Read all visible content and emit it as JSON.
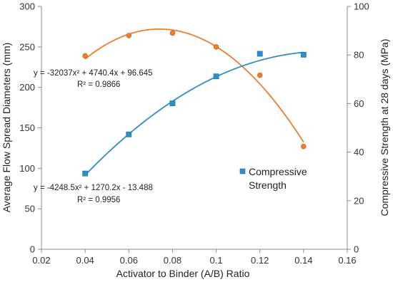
{
  "chart_data": {
    "type": "scatter",
    "xlabel": "Activator to Binder (A/B) Ratio",
    "ylabel_left": "Average Flow Spread Diameters (mm)",
    "ylabel_right": "Compressive Strength at 28 days (MPa)",
    "xlim": [
      0.02,
      0.16
    ],
    "ylim_left": [
      0,
      300
    ],
    "ylim_right": [
      0,
      100
    ],
    "x_ticks": [
      0.02,
      0.04,
      0.06,
      0.08,
      0.1,
      0.12,
      0.14,
      0.16
    ],
    "x_tick_labels": [
      "0.02",
      "0.04",
      "0.06",
      "0.08",
      "0.1",
      "0.12",
      "0.14",
      "0.16"
    ],
    "y_left_ticks": [
      0,
      50,
      100,
      150,
      200,
      250,
      300
    ],
    "y_left_tick_labels": [
      "0",
      "50",
      "100",
      "150",
      "200",
      "250",
      "300"
    ],
    "y_right_ticks": [
      0,
      20,
      40,
      60,
      80,
      100
    ],
    "y_right_tick_labels": [
      "0",
      "20",
      "40",
      "60",
      "80",
      "100"
    ],
    "grid": false,
    "series": [
      {
        "axis": "left",
        "color": "#ED7D31",
        "marker": "circle",
        "x": [
          0.04,
          0.06,
          0.08,
          0.1,
          0.12,
          0.14
        ],
        "y": [
          239,
          264,
          267,
          250,
          215,
          127
        ],
        "trendline": {
          "type": "poly2",
          "coefficients": [
            -32037,
            4740.4,
            96.645
          ]
        }
      },
      {
        "name": "Compressive Strength",
        "axis": "right",
        "color": "#2E8FC7",
        "marker": "square",
        "x": [
          0.04,
          0.06,
          0.08,
          0.1,
          0.12,
          0.14
        ],
        "y": [
          31.2,
          47.3,
          60.1,
          71.2,
          80.5,
          80.1
        ],
        "trendline": {
          "type": "poly2",
          "coefficients": [
            -4248.5,
            1270.2,
            -13.488
          ]
        }
      }
    ],
    "annotations": {
      "flow_eq": "y = -32037x² + 4740.4x + 96.645",
      "flow_r2": "R² = 0.9866",
      "strength_eq": "y = -4248.5x² + 1270.2x - 13.488",
      "strength_r2": "R² = 0.9956"
    },
    "legend": {
      "placement": "middle-right",
      "line1": "Compressive",
      "line2": "Strength"
    }
  }
}
